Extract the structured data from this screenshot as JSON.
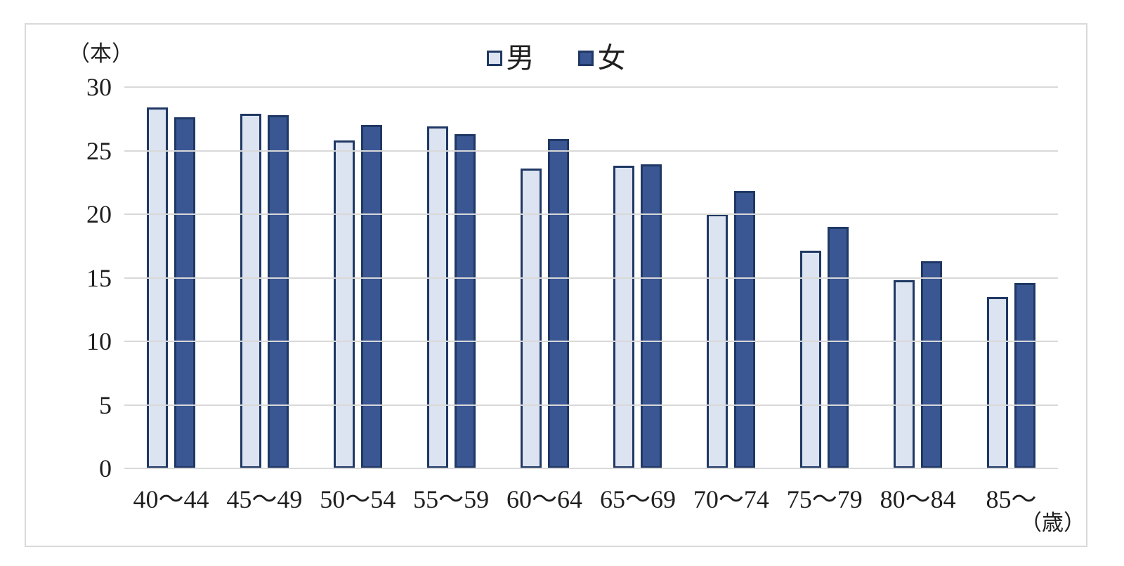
{
  "chart_data": {
    "type": "bar",
    "title": "",
    "y_unit_label": "（本）",
    "x_unit_label": "（歳）",
    "categories": [
      "40～44",
      "45～49",
      "50～54",
      "55～59",
      "60～64",
      "65～69",
      "70～74",
      "75～79",
      "80～84",
      "85～"
    ],
    "series": [
      {
        "name": "男",
        "fill": "#dce3f1",
        "border": "#1f3864",
        "values": [
          28.4,
          27.9,
          25.8,
          26.9,
          23.6,
          23.8,
          20.0,
          17.1,
          14.8,
          13.5
        ]
      },
      {
        "name": "女",
        "fill": "#3a5693",
        "border": "#1f3864",
        "values": [
          27.6,
          27.8,
          27.0,
          26.3,
          25.9,
          23.9,
          21.8,
          19.0,
          16.3,
          14.6
        ]
      }
    ],
    "ylim": [
      0,
      30
    ],
    "yticks": [
      0,
      5,
      10,
      15,
      20,
      25,
      30
    ],
    "grid": true,
    "legend_position": "top-center"
  },
  "colors": {
    "male_fill": "#dce3f1",
    "female_fill": "#3a5693",
    "bar_border": "#1f3864",
    "gridline": "#d9d9d9",
    "frame_border": "#d9d9d9",
    "text": "#1f1f1f"
  },
  "legend": {
    "male_label": "男",
    "female_label": "女"
  }
}
